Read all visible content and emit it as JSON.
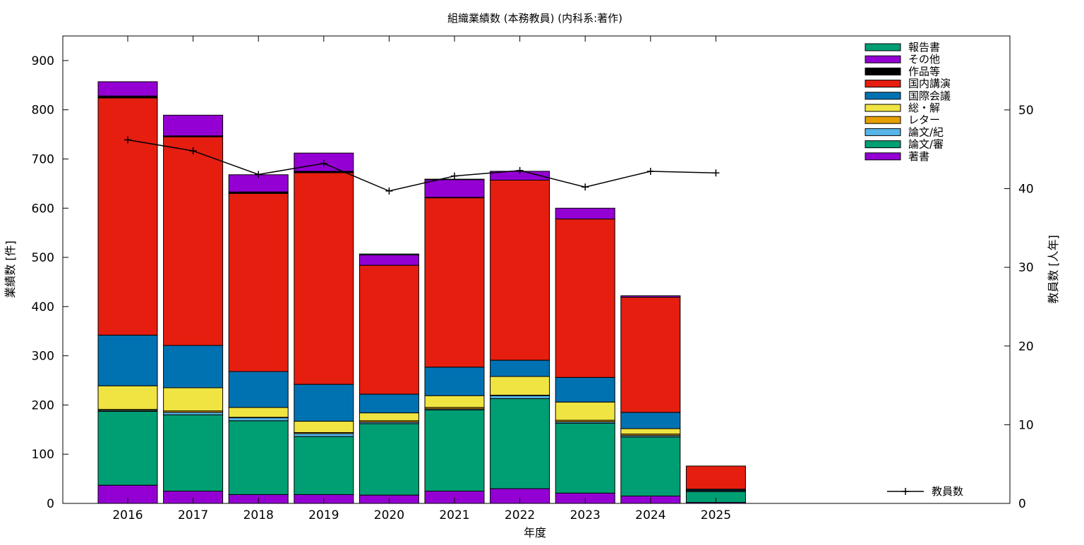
{
  "chart_data": {
    "type": "bar",
    "title": "組織業績数 (本務教員) (内科系:著作)",
    "xlabel": "年度",
    "ylabel": "業績数 [件]",
    "y2label": "教員数 [人年]",
    "ylim": [
      0,
      950
    ],
    "y2lim": [
      0,
      59.4
    ],
    "yticks": [
      0,
      100,
      200,
      300,
      400,
      500,
      600,
      700,
      800,
      900
    ],
    "y2ticks": [
      0,
      10,
      20,
      30,
      40,
      50
    ],
    "grid": false,
    "legend_position": "top-right",
    "stacked": true,
    "categories": [
      "2016",
      "2017",
      "2018",
      "2019",
      "2020",
      "2021",
      "2022",
      "2023",
      "2024",
      "2025"
    ],
    "series": [
      {
        "name": "著書",
        "color": "#9400d3",
        "values": [
          37,
          25,
          18,
          18,
          17,
          25,
          30,
          21,
          15,
          2
        ]
      },
      {
        "name": "論文/審",
        "color": "#009e73",
        "values": [
          150,
          155,
          150,
          118,
          145,
          165,
          183,
          142,
          120,
          22
        ]
      },
      {
        "name": "論文/紀",
        "color": "#56b4e9",
        "values": [
          2,
          5,
          6,
          6,
          3,
          2,
          6,
          3,
          3,
          2
        ]
      },
      {
        "name": "レター",
        "color": "#e69f00",
        "values": [
          2,
          3,
          1,
          2,
          3,
          3,
          1,
          3,
          3,
          1
        ]
      },
      {
        "name": "総・解",
        "color": "#f0e442",
        "values": [
          48,
          47,
          20,
          23,
          16,
          24,
          38,
          37,
          11,
          0
        ]
      },
      {
        "name": "国際会議",
        "color": "#0072b2",
        "values": [
          103,
          86,
          73,
          75,
          38,
          58,
          33,
          50,
          33,
          2
        ]
      },
      {
        "name": "国内講演",
        "color": "#e51e10",
        "values": [
          482,
          424,
          362,
          430,
          262,
          344,
          366,
          322,
          234,
          47
        ]
      },
      {
        "name": "作品等",
        "color": "#000000",
        "values": [
          4,
          2,
          3,
          3,
          0,
          1,
          0,
          0,
          0,
          0
        ]
      },
      {
        "name": "その他",
        "color": "#9400d3",
        "values": [
          29,
          42,
          35,
          37,
          21,
          36,
          18,
          22,
          3,
          0
        ]
      },
      {
        "name": "報告書",
        "color": "#009e73",
        "values": [
          0,
          0,
          0,
          0,
          2,
          1,
          0,
          0,
          0,
          0
        ]
      }
    ],
    "line": {
      "name": "教員数",
      "color": "#000000",
      "values": [
        46.2,
        44.8,
        41.8,
        43.2,
        39.7,
        41.6,
        42.3,
        40.2,
        42.2,
        42.0
      ]
    }
  }
}
